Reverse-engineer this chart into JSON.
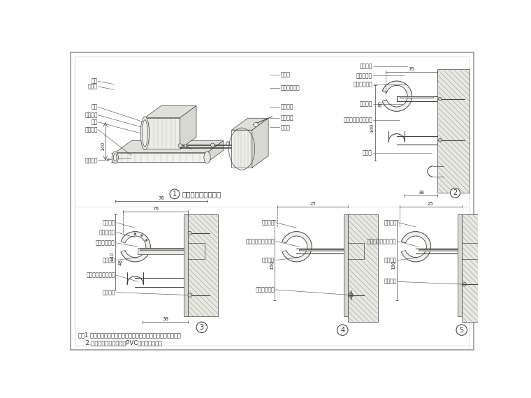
{
  "bg_color": "#ffffff",
  "line_color": "#444444",
  "title": "缓冲扶手施工示意图",
  "note_line1": "注：1.各种扶手护角均有成品配套的阳角转角，应注意对应选择。",
  "note_line2": "    2.扶手面板可选用硬塑料PVC或乙烯塑料等。",
  "d1_labels_left": [
    "蝶钉",
    "内圆角",
    "樄杆",
    "端口盖盖",
    "扔帽",
    "系墙螺栋",
    "扶手面板"
  ],
  "d1_labels_right": [
    "巧锁钉",
    "金属支座中距",
    "铝制横杆",
    "乙烯软帪",
    "外圆角"
  ],
  "d2_labels": [
    "扶手面板",
    "嵌内装修物",
    "金属支座中距",
    "乙烯软帪",
    "铝型材支架（成品）",
    "固定套"
  ],
  "d3_labels": [
    "扶手面板",
    "彩色点缓带",
    "金属支座中距",
    "乙烯软帪",
    "铝型材支架（成品）",
    "系墙螺栋"
  ],
  "d4_labels": [
    "扶手面板",
    "铝型材支架（成品）",
    "乙烯软帪",
    "金属膨胀螺栋"
  ],
  "d5_labels": [
    "扶手面板",
    "铝型材支架（成品）",
    "乙烯软帪",
    "系墙螺栋"
  ]
}
